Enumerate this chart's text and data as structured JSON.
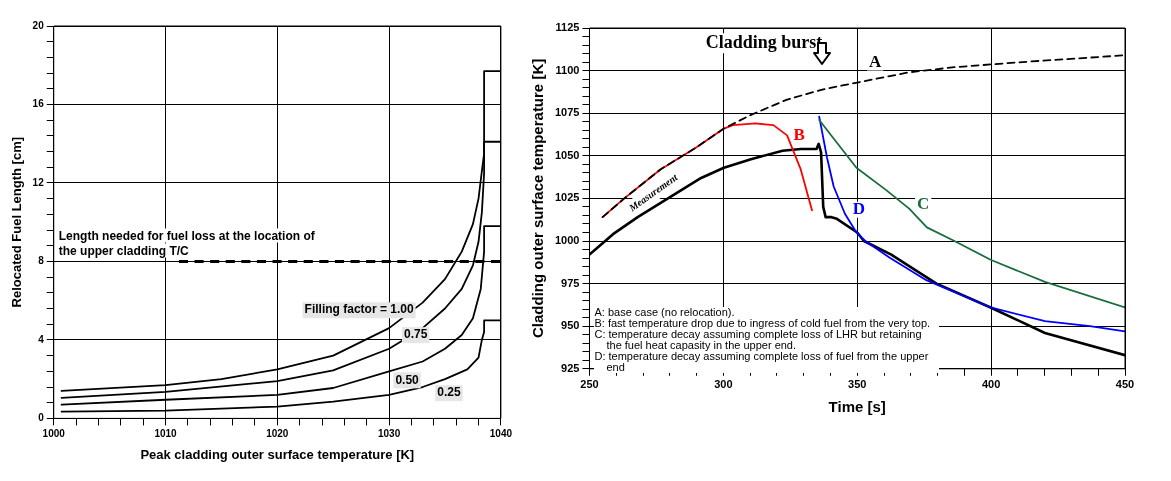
{
  "chart_data": [
    {
      "type": "line",
      "xlabel": "Peak cladding outer surface temperature [K]",
      "ylabel": "Relocated Fuel Length [cm]",
      "xlim": [
        1000,
        1040
      ],
      "ylim": [
        0,
        20
      ],
      "xticks": [
        1000,
        {
          "value": 1002,
          "label": null
        },
        {
          "value": 1004,
          "label": null
        },
        {
          "value": 1006,
          "label": null
        },
        {
          "value": 1008,
          "label": null
        },
        1010,
        {
          "value": 1012,
          "label": null
        },
        {
          "value": 1014,
          "label": null
        },
        {
          "value": 1016,
          "label": null
        },
        {
          "value": 1018,
          "label": null
        },
        1020,
        {
          "value": 1022,
          "label": null
        },
        {
          "value": 1024,
          "label": null
        },
        {
          "value": 1026,
          "label": null
        },
        {
          "value": 1028,
          "label": null
        },
        1030,
        {
          "value": 1032,
          "label": null
        },
        {
          "value": 1034,
          "label": null
        },
        {
          "value": 1036,
          "label": null
        },
        {
          "value": 1038,
          "label": null
        },
        1040
      ],
      "yticks": [
        0,
        {
          "value": 0.8,
          "label": null
        },
        {
          "value": 1.6,
          "label": null
        },
        {
          "value": 2.4,
          "label": null
        },
        {
          "value": 3.2,
          "label": null
        },
        4,
        {
          "value": 4.8,
          "label": null
        },
        {
          "value": 5.6,
          "label": null
        },
        {
          "value": 6.4,
          "label": null
        },
        {
          "value": 7.2,
          "label": null
        },
        8,
        {
          "value": 8.8,
          "label": null
        },
        {
          "value": 9.6,
          "label": null
        },
        {
          "value": 10.4,
          "label": null
        },
        {
          "value": 11.2,
          "label": null
        },
        12,
        {
          "value": 12.8,
          "label": null
        },
        {
          "value": 13.6,
          "label": null
        },
        {
          "value": 14.4,
          "label": null
        },
        {
          "value": 15.2,
          "label": null
        },
        16,
        {
          "value": 16.8,
          "label": null
        },
        {
          "value": 17.6,
          "label": null
        },
        {
          "value": 18.4,
          "label": null
        },
        {
          "value": 19.2,
          "label": null
        },
        20
      ],
      "grid": true,
      "marker": "none",
      "series": [
        {
          "name": "Filling factor = 1.00",
          "color": "#000000",
          "x": [
            1000.7,
            1010,
            1015,
            1020,
            1025,
            1030,
            1033,
            1035,
            1036.5,
            1037.5,
            1038,
            1038.3,
            1038.5,
            1038.5,
            1040
          ],
          "values": [
            1.4,
            1.7,
            2.0,
            2.5,
            3.2,
            4.6,
            5.9,
            7.1,
            8.5,
            9.9,
            11.2,
            12.6,
            13.5,
            17.7,
            17.7
          ]
        },
        {
          "name": "0.75",
          "color": "#000000",
          "x": [
            1000.7,
            1010,
            1020,
            1025,
            1030,
            1033,
            1035,
            1036.5,
            1037.5,
            1038,
            1038.3,
            1038.5,
            1038.5,
            1040
          ],
          "values": [
            1.05,
            1.35,
            1.9,
            2.45,
            3.55,
            4.6,
            5.6,
            6.6,
            7.8,
            9.0,
            10.5,
            12.5,
            14.1,
            14.1
          ]
        },
        {
          "name": "0.50",
          "color": "#000000",
          "x": [
            1000.7,
            1010,
            1020,
            1025,
            1030,
            1033,
            1035,
            1036.5,
            1037.5,
            1038.2,
            1038.5,
            1038.5,
            1040
          ],
          "values": [
            0.7,
            0.95,
            1.2,
            1.55,
            2.4,
            2.9,
            3.55,
            4.25,
            5.1,
            6.6,
            8.5,
            9.8,
            9.8
          ]
        },
        {
          "name": "0.25",
          "color": "#000000",
          "x": [
            1000.7,
            1010,
            1020,
            1025,
            1030,
            1033,
            1035,
            1037,
            1038,
            1038.3,
            1038.5,
            1038.5,
            1040
          ],
          "values": [
            0.35,
            0.4,
            0.6,
            0.85,
            1.2,
            1.6,
            2.0,
            2.5,
            3.1,
            4.0,
            4.4,
            5.0,
            5.0
          ]
        }
      ],
      "ref_lines": [
        {
          "axis": "y",
          "value": 8,
          "label": "Length needed for fuel loss at the location of the upper cladding T/C",
          "color": "#000000",
          "line_style": "dashed"
        }
      ]
    },
    {
      "type": "line",
      "xlabel": "Time [s]",
      "ylabel": "Cladding outer surface temperature [K]",
      "xlim": [
        250,
        450
      ],
      "ylim": [
        925,
        1125
      ],
      "xticks": [
        250,
        {
          "value": 260,
          "label": null
        },
        {
          "value": 270,
          "label": null
        },
        {
          "value": 280,
          "label": null
        },
        {
          "value": 290,
          "label": null
        },
        300,
        {
          "value": 310,
          "label": null
        },
        {
          "value": 320,
          "label": null
        },
        {
          "value": 330,
          "label": null
        },
        {
          "value": 340,
          "label": null
        },
        350,
        {
          "value": 360,
          "label": null
        },
        {
          "value": 370,
          "label": null
        },
        {
          "value": 380,
          "label": null
        },
        {
          "value": 390,
          "label": null
        },
        400,
        {
          "value": 410,
          "label": null
        },
        {
          "value": 420,
          "label": null
        },
        {
          "value": 430,
          "label": null
        },
        {
          "value": 440,
          "label": null
        },
        450
      ],
      "yticks": [
        925,
        {
          "value": 930,
          "label": null
        },
        {
          "value": 935,
          "label": null
        },
        {
          "value": 940,
          "label": null
        },
        {
          "value": 945,
          "label": null
        },
        950,
        {
          "value": 955,
          "label": null
        },
        {
          "value": 960,
          "label": null
        },
        {
          "value": 965,
          "label": null
        },
        {
          "value": 970,
          "label": null
        },
        975,
        {
          "value": 980,
          "label": null
        },
        {
          "value": 985,
          "label": null
        },
        {
          "value": 990,
          "label": null
        },
        {
          "value": 995,
          "label": null
        },
        1000,
        {
          "value": 1005,
          "label": null
        },
        {
          "value": 1010,
          "label": null
        },
        {
          "value": 1015,
          "label": null
        },
        {
          "value": 1020,
          "label": null
        },
        1025,
        {
          "value": 1030,
          "label": null
        },
        {
          "value": 1035,
          "label": null
        },
        {
          "value": 1040,
          "label": null
        },
        {
          "value": 1045,
          "label": null
        },
        1050,
        {
          "value": 1055,
          "label": null
        },
        {
          "value": 1060,
          "label": null
        },
        {
          "value": 1065,
          "label": null
        },
        {
          "value": 1070,
          "label": null
        },
        1075,
        {
          "value": 1080,
          "label": null
        },
        {
          "value": 1085,
          "label": null
        },
        {
          "value": 1090,
          "label": null
        },
        {
          "value": 1095,
          "label": null
        },
        1100,
        {
          "value": 1105,
          "label": null
        },
        {
          "value": 1110,
          "label": null
        },
        {
          "value": 1115,
          "label": null
        },
        {
          "value": 1120,
          "label": null
        },
        1125
      ],
      "grid": true,
      "marker": "none",
      "series": [
        {
          "name": "A",
          "color": "#000000",
          "line_style": "dashed",
          "x": [
            254.9,
            263,
            276.5,
            290,
            300.2,
            310.3,
            323.8,
            337.3,
            350,
            369.4,
            386.3,
            411.6,
            450
          ],
          "values": [
            1014,
            1025,
            1042,
            1055,
            1066,
            1074,
            1083,
            1089,
            1093,
            1099,
            1102,
            1105,
            1109
          ]
        },
        {
          "name": "B",
          "color": "#ff0000",
          "x": [
            254.9,
            263,
            276.5,
            290,
            300.2,
            303.6,
            312,
            318.7,
            323.8,
            328.9,
            333.1
          ],
          "values": [
            1014,
            1025,
            1042,
            1055,
            1066,
            1068,
            1069,
            1068,
            1062,
            1042,
            1018
          ]
        },
        {
          "name": "C",
          "color": "#1a6e3c",
          "x": [
            335.8,
            349.7,
            360.7,
            369.4,
            376,
            386.3,
            399.8,
            420.1,
            450
          ],
          "values": [
            1071,
            1043,
            1030,
            1019,
            1008,
            1000,
            989,
            976,
            961
          ]
        },
        {
          "name": "D",
          "color": "#0000ff",
          "x": [
            335.8,
            338.7,
            341.2,
            345.4,
            349.7,
            353,
            362.3,
            375.8,
            399.8,
            420.1,
            436.9,
            450
          ],
          "values": [
            1073,
            1049,
            1032,
            1016,
            1005,
            1000,
            990,
            977,
            961,
            953,
            950,
            947
          ]
        },
        {
          "name": "Measurement",
          "color": "#000000",
          "x": [
            250,
            258.8,
            268,
            291.7,
            300.2,
            310.3,
            322.1,
            328.9,
            334.8,
            335.6,
            336.5,
            337.3,
            338.2,
            340.4,
            342.4,
            350,
            352.5,
            362.7,
            379.6,
            399.8,
            420.1,
            450
          ],
          "values": [
            992,
            1004,
            1014,
            1037,
            1043,
            1048,
            1053,
            1054,
            1054,
            1057,
            1052,
            1020,
            1014,
            1014,
            1013,
            1005,
            1000,
            992,
            975,
            961,
            946,
            933
          ]
        }
      ],
      "annotations": [
        "Cladding burst",
        "A: base case (no relocation).",
        "B: fast temperature drop due to ingress of cold fuel from the very top.",
        "C: temperature decay assuming complete loss of LHR but retaining the fuel heat capasity in the upper end.",
        "D: temperature decay assuming complete loss of fuel from the upper end"
      ]
    }
  ]
}
